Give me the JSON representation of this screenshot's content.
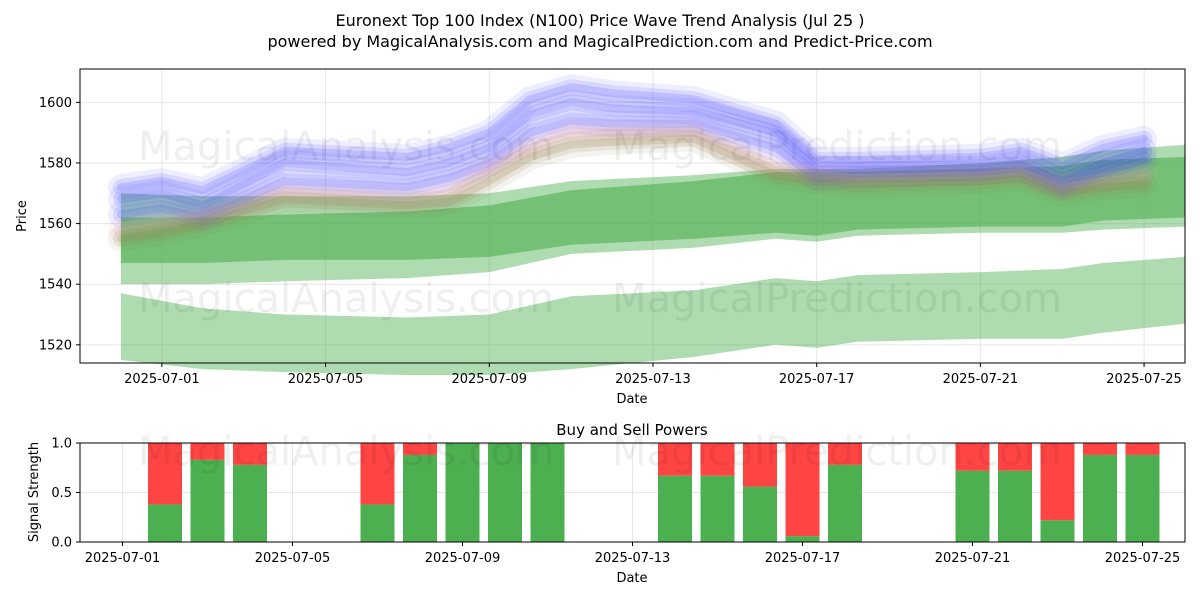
{
  "header": {
    "title": "Euronext Top 100 Index (N100) Price Wave Trend Analysis (Jul 25 )",
    "subtitle": "powered by MagicalAnalysis.com and MagicalPrediction.com and Predict-Price.com"
  },
  "watermarks": [
    "MagicalAnalysis.com",
    "MagicalPrediction.com"
  ],
  "colors": {
    "green": "#4caf50",
    "red": "#ff4444",
    "blue": "#4040ff",
    "pink": "#e8a0b0",
    "olive": "#8a7a40"
  },
  "chart_data": [
    {
      "type": "area",
      "name": "price-wave",
      "title": "",
      "xlabel": "Date",
      "ylabel": "Price",
      "xlim": [
        "2025-06-29",
        "2025-07-26"
      ],
      "ylim": [
        1514,
        1611
      ],
      "x_ticks": [
        "2025-07-01",
        "2025-07-05",
        "2025-07-09",
        "2025-07-13",
        "2025-07-17",
        "2025-07-21",
        "2025-07-25"
      ],
      "y_ticks": [
        1520,
        1540,
        1560,
        1580,
        1600
      ],
      "grid": true,
      "green_bands": [
        {
          "x": [
            "2025-06-30",
            "2025-07-02",
            "2025-07-04",
            "2025-07-07",
            "2025-07-09",
            "2025-07-11",
            "2025-07-14",
            "2025-07-16",
            "2025-07-17",
            "2025-07-18",
            "2025-07-21",
            "2025-07-23",
            "2025-07-24",
            "2025-07-26"
          ],
          "upper": [
            1537,
            1532,
            1530,
            1529,
            1530,
            1536,
            1538,
            1542,
            1541,
            1543,
            1544,
            1545,
            1547,
            1549
          ],
          "lower": [
            1515,
            1512,
            1511,
            1510,
            1510,
            1512,
            1516,
            1520,
            1519,
            1521,
            1522,
            1522,
            1524,
            1527
          ]
        },
        {
          "x": [
            "2025-06-30",
            "2025-07-02",
            "2025-07-04",
            "2025-07-07",
            "2025-07-09",
            "2025-07-11",
            "2025-07-14",
            "2025-07-16",
            "2025-07-17",
            "2025-07-18",
            "2025-07-21",
            "2025-07-23",
            "2025-07-24",
            "2025-07-26"
          ],
          "upper": [
            1570,
            1569,
            1569,
            1569,
            1570,
            1574,
            1576,
            1578,
            1578,
            1578,
            1580,
            1582,
            1584,
            1586
          ],
          "lower": [
            1540,
            1540,
            1541,
            1542,
            1544,
            1550,
            1552,
            1555,
            1554,
            1556,
            1557,
            1557,
            1558,
            1559
          ]
        },
        {
          "x": [
            "2025-06-30",
            "2025-07-02",
            "2025-07-04",
            "2025-07-07",
            "2025-07-09",
            "2025-07-11",
            "2025-07-14",
            "2025-07-16",
            "2025-07-17",
            "2025-07-18",
            "2025-07-21",
            "2025-07-23",
            "2025-07-24",
            "2025-07-26"
          ],
          "upper": [
            1562,
            1562,
            1563,
            1564,
            1566,
            1571,
            1574,
            1577,
            1577,
            1577,
            1578,
            1579,
            1581,
            1582
          ],
          "lower": [
            1547,
            1547,
            1548,
            1548,
            1549,
            1553,
            1555,
            1557,
            1556,
            1558,
            1559,
            1559,
            1561,
            1562
          ]
        }
      ],
      "wave_lines": [
        {
          "color": "blue",
          "x": [
            "2025-06-30",
            "2025-07-01",
            "2025-07-02",
            "2025-07-04",
            "2025-07-07",
            "2025-07-08",
            "2025-07-09",
            "2025-07-10",
            "2025-07-11",
            "2025-07-12",
            "2025-07-14",
            "2025-07-16",
            "2025-07-17",
            "2025-07-18",
            "2025-07-21",
            "2025-07-22",
            "2025-07-23",
            "2025-07-24",
            "2025-07-25"
          ],
          "y": [
            1568,
            1570,
            1566,
            1580,
            1577,
            1580,
            1585,
            1596,
            1600,
            1598,
            1597,
            1590,
            1578,
            1578,
            1578,
            1580,
            1574,
            1580,
            1584
          ]
        },
        {
          "color": "blue",
          "x": [
            "2025-06-30",
            "2025-07-01",
            "2025-07-02",
            "2025-07-04",
            "2025-07-07",
            "2025-07-08",
            "2025-07-09",
            "2025-07-10",
            "2025-07-11",
            "2025-07-12",
            "2025-07-14",
            "2025-07-16",
            "2025-07-17",
            "2025-07-18",
            "2025-07-21",
            "2025-07-22",
            "2025-07-23",
            "2025-07-24",
            "2025-07-25"
          ],
          "y": [
            1563,
            1565,
            1562,
            1574,
            1572,
            1575,
            1580,
            1590,
            1594,
            1593,
            1593,
            1585,
            1575,
            1576,
            1577,
            1578,
            1572,
            1577,
            1581
          ]
        },
        {
          "color": "blue",
          "x": [
            "2025-06-30",
            "2025-07-01",
            "2025-07-02",
            "2025-07-04",
            "2025-07-07",
            "2025-07-08",
            "2025-07-09",
            "2025-07-10",
            "2025-07-11",
            "2025-07-12",
            "2025-07-14",
            "2025-07-16",
            "2025-07-17",
            "2025-07-18",
            "2025-07-21",
            "2025-07-22",
            "2025-07-23",
            "2025-07-24",
            "2025-07-25"
          ],
          "y": [
            1572,
            1574,
            1571,
            1584,
            1582,
            1585,
            1590,
            1601,
            1605,
            1603,
            1601,
            1593,
            1581,
            1581,
            1582,
            1584,
            1579,
            1585,
            1588
          ]
        },
        {
          "color": "pink",
          "x": [
            "2025-06-30",
            "2025-07-01",
            "2025-07-02",
            "2025-07-04",
            "2025-07-07",
            "2025-07-08",
            "2025-07-09",
            "2025-07-10",
            "2025-07-11",
            "2025-07-12",
            "2025-07-14",
            "2025-07-16",
            "2025-07-17",
            "2025-07-18",
            "2025-07-21",
            "2025-07-22",
            "2025-07-23",
            "2025-07-24",
            "2025-07-25"
          ],
          "y": [
            1558,
            1560,
            1562,
            1570,
            1568,
            1570,
            1578,
            1585,
            1590,
            1590,
            1590,
            1578,
            1576,
            1575,
            1576,
            1577,
            1572,
            1574,
            1576
          ]
        },
        {
          "color": "olive",
          "x": [
            "2025-06-30",
            "2025-07-01",
            "2025-07-02",
            "2025-07-04",
            "2025-07-07",
            "2025-07-08",
            "2025-07-09",
            "2025-07-10",
            "2025-07-11",
            "2025-07-12",
            "2025-07-14",
            "2025-07-16",
            "2025-07-17",
            "2025-07-18",
            "2025-07-21",
            "2025-07-22",
            "2025-07-23",
            "2025-07-24",
            "2025-07-25"
          ],
          "y": [
            1555,
            1557,
            1560,
            1568,
            1566,
            1567,
            1574,
            1582,
            1586,
            1587,
            1588,
            1576,
            1574,
            1573,
            1574,
            1575,
            1570,
            1572,
            1573
          ]
        }
      ]
    },
    {
      "type": "bar",
      "name": "buy-sell-powers",
      "title": "Buy and Sell Powers",
      "xlabel": "Date",
      "ylabel": "Signal Strength",
      "xlim": [
        "2025-06-30",
        "2025-07-26"
      ],
      "ylim": [
        0,
        1.0
      ],
      "x_ticks": [
        "2025-07-01",
        "2025-07-05",
        "2025-07-09",
        "2025-07-13",
        "2025-07-17",
        "2025-07-21",
        "2025-07-25"
      ],
      "y_ticks": [
        "0.0",
        "0.5",
        "1.0"
      ],
      "grid": true,
      "categories": [
        "2025-07-02",
        "2025-07-03",
        "2025-07-04",
        "2025-07-07",
        "2025-07-08",
        "2025-07-09",
        "2025-07-10",
        "2025-07-11",
        "2025-07-14",
        "2025-07-15",
        "2025-07-16",
        "2025-07-17",
        "2025-07-18",
        "2025-07-21",
        "2025-07-22",
        "2025-07-23",
        "2025-07-24",
        "2025-07-25"
      ],
      "series": [
        {
          "color": "green",
          "values": [
            0.38,
            0.83,
            0.78,
            0.38,
            0.88,
            1.0,
            1.0,
            1.0,
            0.67,
            0.67,
            0.56,
            0.06,
            0.78,
            0.72,
            0.72,
            0.22,
            0.88,
            0.88
          ]
        },
        {
          "color": "red",
          "values": [
            0.62,
            0.17,
            0.22,
            0.62,
            0.12,
            0.0,
            0.0,
            0.0,
            0.33,
            0.33,
            0.44,
            0.94,
            0.22,
            0.28,
            0.28,
            0.78,
            0.12,
            0.12
          ]
        }
      ]
    }
  ]
}
